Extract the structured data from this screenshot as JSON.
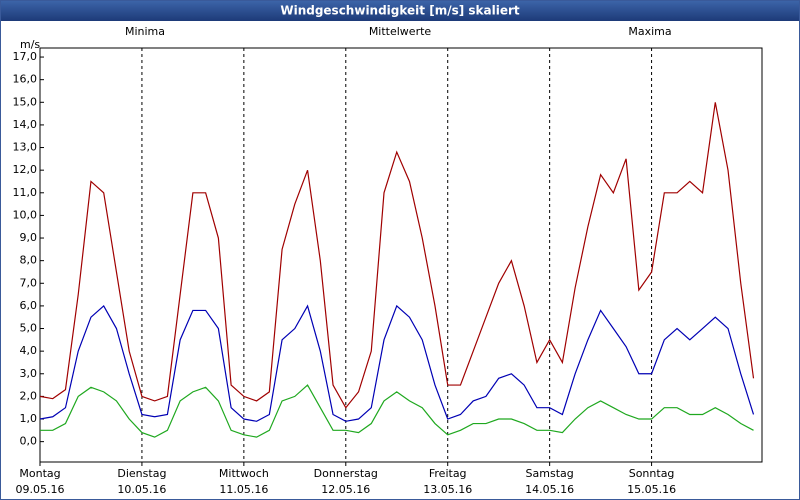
{
  "chart_data": {
    "type": "line",
    "title": "Windgeschwindigkeit [m/s] skaliert",
    "y_label": "m/s",
    "x": [
      0,
      3,
      6,
      9,
      12,
      15,
      18,
      21,
      24,
      27,
      30,
      33,
      36,
      39,
      42,
      45,
      48,
      51,
      54,
      57,
      60,
      63,
      66,
      69,
      72,
      75,
      78,
      81,
      84,
      87,
      90,
      93,
      96,
      99,
      102,
      105,
      108,
      111,
      114,
      117,
      120,
      123,
      126,
      129,
      132,
      135,
      138,
      141,
      144,
      147,
      150,
      153,
      156,
      159,
      162,
      165,
      168
    ],
    "xlim": [
      0,
      170
    ],
    "xticks": [
      {
        "value": 0,
        "label": "Montag",
        "date": "09.05.16"
      },
      {
        "value": 24,
        "label": "Dienstag",
        "date": "10.05.16"
      },
      {
        "value": 48,
        "label": "Mittwoch",
        "date": "11.05.16"
      },
      {
        "value": 72,
        "label": "Donnerstag",
        "date": "12.05.16"
      },
      {
        "value": 96,
        "label": "Freitag",
        "date": "13.05.16"
      },
      {
        "value": 120,
        "label": "Samstag",
        "date": "14.05.16"
      },
      {
        "value": 144,
        "label": "Sonntag",
        "date": "15.05.16"
      }
    ],
    "ylim": [
      -0.9,
      17.4
    ],
    "yticks": [
      {
        "value": 0,
        "label": "0,0"
      },
      {
        "value": 1,
        "label": "1,0"
      },
      {
        "value": 2,
        "label": "2,0"
      },
      {
        "value": 3,
        "label": "3,0"
      },
      {
        "value": 4,
        "label": "4,0"
      },
      {
        "value": 5,
        "label": "5,0"
      },
      {
        "value": 6,
        "label": "6,0"
      },
      {
        "value": 7,
        "label": "7,0"
      },
      {
        "value": 8,
        "label": "8,0"
      },
      {
        "value": 9,
        "label": "9,0"
      },
      {
        "value": 10,
        "label": "10,0"
      },
      {
        "value": 11,
        "label": "11,0"
      },
      {
        "value": 12,
        "label": "12,0"
      },
      {
        "value": 13,
        "label": "13,0"
      },
      {
        "value": 14,
        "label": "14,0"
      },
      {
        "value": 15,
        "label": "15,0"
      },
      {
        "value": 16,
        "label": "16,0"
      },
      {
        "value": 17,
        "label": "17,0"
      }
    ],
    "grid": "x",
    "series": [
      {
        "name": "Minima",
        "color": "#1fa81f",
        "values": [
          0.5,
          0.5,
          0.8,
          2.0,
          2.4,
          2.2,
          1.8,
          1.0,
          0.4,
          0.2,
          0.5,
          1.8,
          2.2,
          2.4,
          1.8,
          0.5,
          0.3,
          0.2,
          0.5,
          1.8,
          2.0,
          2.5,
          1.5,
          0.5,
          0.5,
          0.4,
          0.8,
          1.8,
          2.2,
          1.8,
          1.5,
          0.8,
          0.3,
          0.5,
          0.8,
          0.8,
          1.0,
          1.0,
          0.8,
          0.5,
          0.5,
          0.4,
          1.0,
          1.5,
          1.8,
          1.5,
          1.2,
          1.0,
          1.0,
          1.5,
          1.5,
          1.2,
          1.2,
          1.5,
          1.2,
          0.8,
          0.5
        ]
      },
      {
        "name": "Mittelwerte",
        "color": "#0000b4",
        "values": [
          1.0,
          1.1,
          1.5,
          4.0,
          5.5,
          6.0,
          5.0,
          3.0,
          1.2,
          1.1,
          1.2,
          4.5,
          5.8,
          5.8,
          5.0,
          1.5,
          1.0,
          0.9,
          1.2,
          4.5,
          5.0,
          6.0,
          4.0,
          1.2,
          0.9,
          1.0,
          1.5,
          4.5,
          6.0,
          5.5,
          4.5,
          2.5,
          1.0,
          1.2,
          1.8,
          2.0,
          2.8,
          3.0,
          2.5,
          1.5,
          1.5,
          1.2,
          3.0,
          4.5,
          5.8,
          5.0,
          4.2,
          3.0,
          3.0,
          4.5,
          5.0,
          4.5,
          5.0,
          5.5,
          5.0,
          3.0,
          1.2
        ]
      },
      {
        "name": "Maxima",
        "color": "#a00000",
        "values": [
          2.0,
          1.9,
          2.3,
          6.5,
          11.5,
          11.0,
          7.5,
          4.0,
          2.0,
          1.8,
          2.0,
          6.5,
          11.0,
          11.0,
          9.0,
          2.5,
          2.0,
          1.8,
          2.2,
          8.5,
          10.5,
          12.0,
          8.0,
          2.5,
          1.5,
          2.2,
          4.0,
          11.0,
          12.8,
          11.5,
          9.0,
          6.0,
          2.5,
          2.5,
          4.0,
          5.5,
          7.0,
          8.0,
          6.0,
          3.5,
          4.5,
          3.5,
          6.8,
          9.5,
          11.8,
          11.0,
          12.5,
          6.7,
          7.5,
          11.0,
          11.0,
          11.5,
          11.0,
          15.0,
          12.0,
          7.0,
          2.8
        ]
      }
    ]
  }
}
